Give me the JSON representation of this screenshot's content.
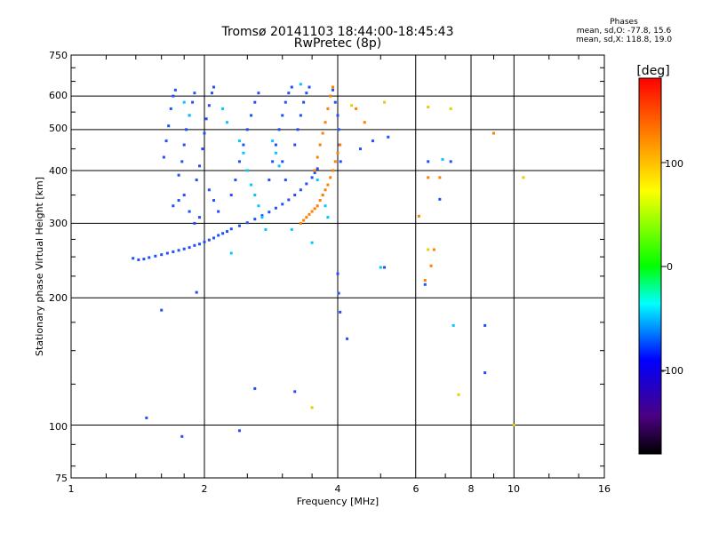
{
  "chart_data": {
    "type": "scatter",
    "title": "Tromsø 20141103 18:44:00-18:45:43",
    "subtitle": "RwPretec (8p)",
    "xlabel": "Frequency [MHz]",
    "ylabel": "Stationary phase Virtual Height [km]",
    "x_scale": "log",
    "y_scale": "log",
    "xlim": [
      1,
      16
    ],
    "ylim": [
      75,
      750
    ],
    "x_ticks": [
      "1",
      "2",
      "4",
      "6",
      "8",
      "10",
      "16"
    ],
    "y_ticks": [
      "750",
      "600",
      "500",
      "400",
      "300",
      "200",
      "100",
      "75"
    ],
    "grid": true,
    "legend": {
      "title": "Phases",
      "lines": [
        "mean, sd,O: -77.8, 15.6",
        "mean, sd,X: 118.8, 19.0"
      ]
    },
    "colorbar": {
      "label": "[deg]",
      "ticks": [
        "100",
        "0",
        "-100"
      ],
      "range": [
        -180,
        180
      ]
    },
    "series": [
      {
        "points": [
          [
            1.38,
            248
          ],
          [
            1.42,
            246
          ],
          [
            1.46,
            247
          ],
          [
            1.5,
            249
          ],
          [
            1.55,
            251
          ],
          [
            1.6,
            253
          ],
          [
            1.65,
            255
          ],
          [
            1.7,
            257
          ],
          [
            1.75,
            259
          ],
          [
            1.8,
            261
          ],
          [
            1.85,
            263
          ],
          [
            1.9,
            266
          ],
          [
            1.95,
            268
          ],
          [
            2.0,
            271
          ],
          [
            2.05,
            274
          ],
          [
            2.1,
            277
          ],
          [
            2.15,
            281
          ],
          [
            2.2,
            284
          ],
          [
            2.25,
            287
          ],
          [
            2.3,
            291
          ],
          [
            2.4,
            296
          ],
          [
            2.5,
            301
          ],
          [
            2.6,
            307
          ],
          [
            2.7,
            313
          ],
          [
            2.8,
            319
          ],
          [
            2.9,
            326
          ],
          [
            3.0,
            333
          ],
          [
            3.1,
            341
          ],
          [
            3.2,
            350
          ],
          [
            3.3,
            360
          ],
          [
            3.4,
            372
          ],
          [
            3.5,
            385
          ],
          [
            3.55,
            395
          ],
          [
            3.6,
            404
          ],
          [
            1.62,
            430
          ],
          [
            1.64,
            470
          ],
          [
            1.66,
            510
          ],
          [
            1.68,
            560
          ],
          [
            1.7,
            600
          ],
          [
            1.72,
            620
          ],
          [
            1.75,
            390
          ],
          [
            1.78,
            420
          ],
          [
            1.8,
            460
          ],
          [
            1.82,
            500
          ],
          [
            1.85,
            540
          ],
          [
            1.88,
            580
          ],
          [
            1.9,
            610
          ],
          [
            1.92,
            380
          ],
          [
            1.95,
            410
          ],
          [
            1.98,
            450
          ],
          [
            2.0,
            490
          ],
          [
            2.02,
            530
          ],
          [
            2.05,
            570
          ],
          [
            2.08,
            610
          ],
          [
            2.1,
            630
          ],
          [
            1.7,
            330
          ],
          [
            1.75,
            340
          ],
          [
            1.8,
            350
          ],
          [
            1.85,
            320
          ],
          [
            1.9,
            300
          ],
          [
            1.95,
            310
          ],
          [
            2.05,
            360
          ],
          [
            2.1,
            340
          ],
          [
            2.15,
            320
          ],
          [
            2.3,
            350
          ],
          [
            2.35,
            380
          ],
          [
            2.4,
            420
          ],
          [
            2.45,
            460
          ],
          [
            2.5,
            500
          ],
          [
            2.55,
            540
          ],
          [
            2.6,
            580
          ],
          [
            2.65,
            610
          ],
          [
            2.8,
            380
          ],
          [
            2.85,
            420
          ],
          [
            2.9,
            460
          ],
          [
            2.95,
            500
          ],
          [
            3.0,
            540
          ],
          [
            3.05,
            580
          ],
          [
            3.1,
            610
          ],
          [
            3.15,
            630
          ],
          [
            3.2,
            460
          ],
          [
            3.25,
            500
          ],
          [
            3.3,
            540
          ],
          [
            3.35,
            580
          ],
          [
            3.4,
            610
          ],
          [
            3.45,
            630
          ],
          [
            3.0,
            420
          ],
          [
            3.05,
            380
          ],
          [
            3.9,
            620
          ],
          [
            3.95,
            580
          ],
          [
            4.0,
            540
          ],
          [
            4.02,
            500
          ],
          [
            4.04,
            460
          ],
          [
            4.06,
            420
          ],
          [
            4.5,
            450
          ],
          [
            4.8,
            470
          ],
          [
            5.2,
            480
          ],
          [
            1.92,
            206
          ],
          [
            1.6,
            187
          ],
          [
            1.48,
            104
          ],
          [
            1.78,
            94
          ],
          [
            2.4,
            97
          ],
          [
            2.6,
            122
          ],
          [
            3.2,
            120
          ],
          [
            4.0,
            228
          ],
          [
            4.02,
            205
          ],
          [
            4.05,
            185
          ],
          [
            4.2,
            160
          ],
          [
            5.1,
            236
          ],
          [
            6.3,
            215
          ],
          [
            6.4,
            420
          ],
          [
            6.8,
            342
          ],
          [
            7.2,
            420
          ],
          [
            8.6,
            172
          ],
          [
            8.6,
            133
          ]
        ],
        "color": "#1f4fff"
      },
      {
        "points": [
          [
            1.8,
            580
          ],
          [
            1.85,
            540
          ],
          [
            2.2,
            560
          ],
          [
            2.25,
            520
          ],
          [
            2.4,
            470
          ],
          [
            2.45,
            440
          ],
          [
            2.5,
            400
          ],
          [
            2.55,
            370
          ],
          [
            2.6,
            350
          ],
          [
            2.65,
            330
          ],
          [
            2.7,
            310
          ],
          [
            2.75,
            290
          ],
          [
            2.85,
            470
          ],
          [
            2.9,
            440
          ],
          [
            2.95,
            410
          ],
          [
            3.5,
            270
          ],
          [
            3.6,
            380
          ],
          [
            3.7,
            350
          ],
          [
            3.75,
            330
          ],
          [
            3.8,
            310
          ],
          [
            2.3,
            255
          ],
          [
            5.0,
            236
          ],
          [
            7.3,
            172
          ],
          [
            6.9,
            425
          ],
          [
            3.15,
            290
          ],
          [
            3.3,
            640
          ]
        ],
        "color": "#00c8ff"
      },
      {
        "points": [
          [
            3.3,
            300
          ],
          [
            3.35,
            305
          ],
          [
            3.4,
            310
          ],
          [
            3.45,
            315
          ],
          [
            3.5,
            320
          ],
          [
            3.55,
            325
          ],
          [
            3.6,
            330
          ],
          [
            3.65,
            340
          ],
          [
            3.7,
            350
          ],
          [
            3.75,
            360
          ],
          [
            3.8,
            370
          ],
          [
            3.85,
            385
          ],
          [
            3.9,
            400
          ],
          [
            3.95,
            420
          ],
          [
            4.0,
            440
          ],
          [
            4.05,
            460
          ],
          [
            3.55,
            400
          ],
          [
            3.6,
            430
          ],
          [
            3.65,
            460
          ],
          [
            3.7,
            490
          ],
          [
            3.75,
            520
          ],
          [
            3.8,
            560
          ],
          [
            3.85,
            600
          ],
          [
            3.9,
            630
          ],
          [
            4.4,
            560
          ],
          [
            4.6,
            520
          ],
          [
            6.1,
            312
          ],
          [
            6.4,
            385
          ],
          [
            6.5,
            238
          ],
          [
            6.6,
            260
          ],
          [
            6.8,
            385
          ],
          [
            9.0,
            490
          ],
          [
            6.3,
            220
          ]
        ],
        "color": "#ff7f00"
      },
      {
        "points": [
          [
            3.5,
            110
          ],
          [
            6.4,
            260
          ],
          [
            7.5,
            118
          ],
          [
            7.2,
            560
          ],
          [
            10.0,
            100
          ],
          [
            10.5,
            385
          ],
          [
            6.4,
            565
          ],
          [
            5.1,
            580
          ],
          [
            4.3,
            570
          ]
        ],
        "color": "#e0d000"
      }
    ]
  }
}
